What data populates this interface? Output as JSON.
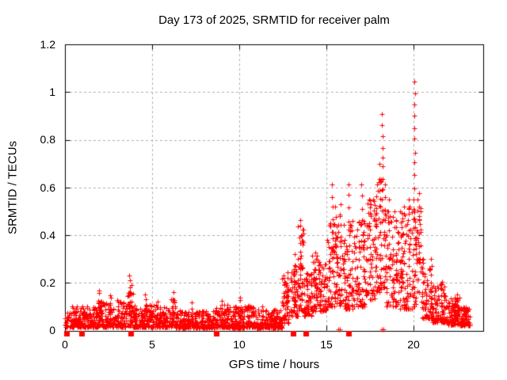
{
  "chart_data": {
    "type": "scatter",
    "title": "Day 173 of 2025, SRMTID for receiver palm",
    "xlabel": "GPS time / hours",
    "ylabel": "SRMTID / TECUs",
    "xlim": [
      0,
      24
    ],
    "ylim": [
      0,
      1.2
    ],
    "xticks": [
      0,
      5,
      10,
      15,
      20
    ],
    "yticks": [
      0,
      0.2,
      0.4,
      0.6,
      0.8,
      1,
      1.2
    ],
    "xtick_labels": [
      "0",
      "5",
      "10",
      "15",
      "20"
    ],
    "ytick_labels": [
      "0",
      "0.2",
      "0.4",
      "0.6",
      "0.8",
      "1",
      "1.2"
    ],
    "grid": true,
    "legend": "none",
    "marker": "plus",
    "marker_size": 7,
    "colors": {
      "points": "#ff0000",
      "axes": "#000000",
      "grid": "#b0b0b0",
      "background": "#ffffff"
    },
    "seed": 20250173,
    "band_segments": [
      [
        0.0,
        1.9,
        210,
        0.015,
        0.1,
        2.2
      ],
      [
        1.9,
        2.1,
        25,
        0.02,
        0.14,
        1.8
      ],
      [
        2.1,
        3.5,
        160,
        0.015,
        0.12,
        2.2
      ],
      [
        3.5,
        3.9,
        45,
        0.02,
        0.16,
        1.8
      ],
      [
        3.9,
        6.1,
        250,
        0.015,
        0.11,
        2.4
      ],
      [
        6.1,
        6.35,
        30,
        0.02,
        0.13,
        1.8
      ],
      [
        6.35,
        8.6,
        250,
        0.012,
        0.085,
        2.2
      ],
      [
        8.6,
        9.4,
        90,
        0.015,
        0.11,
        2.0
      ],
      [
        9.4,
        10.4,
        110,
        0.012,
        0.1,
        2.4
      ],
      [
        10.4,
        10.9,
        55,
        0.015,
        0.11,
        2.0
      ],
      [
        10.9,
        12.45,
        170,
        0.012,
        0.09,
        2.2
      ],
      [
        12.45,
        12.95,
        60,
        0.03,
        0.24,
        1.6
      ],
      [
        12.95,
        13.35,
        48,
        0.06,
        0.3,
        1.6
      ],
      [
        13.35,
        13.7,
        42,
        0.08,
        0.44,
        1.5
      ],
      [
        13.7,
        14.15,
        52,
        0.06,
        0.24,
        1.7
      ],
      [
        14.15,
        14.6,
        52,
        0.08,
        0.32,
        1.6
      ],
      [
        14.6,
        15.05,
        52,
        0.08,
        0.28,
        1.7
      ],
      [
        15.05,
        15.6,
        62,
        0.1,
        0.46,
        1.6
      ],
      [
        15.6,
        16.05,
        52,
        0.1,
        0.5,
        1.7
      ],
      [
        16.05,
        16.55,
        56,
        0.09,
        0.46,
        1.7
      ],
      [
        16.55,
        17.25,
        78,
        0.1,
        0.46,
        1.7
      ],
      [
        17.25,
        17.85,
        68,
        0.13,
        0.55,
        1.6
      ],
      [
        17.85,
        18.45,
        70,
        0.16,
        0.65,
        1.5
      ],
      [
        18.45,
        19.15,
        78,
        0.1,
        0.5,
        1.7
      ],
      [
        19.15,
        19.95,
        90,
        0.09,
        0.52,
        1.7
      ],
      [
        19.95,
        20.45,
        60,
        0.1,
        0.55,
        1.5
      ],
      [
        20.45,
        21.1,
        72,
        0.05,
        0.3,
        1.8
      ],
      [
        21.1,
        21.85,
        85,
        0.035,
        0.2,
        1.9
      ],
      [
        21.85,
        22.7,
        110,
        0.025,
        0.14,
        2.0
      ],
      [
        22.7,
        23.25,
        75,
        0.02,
        0.1,
        2.0
      ]
    ],
    "spike_columns": [
      [
        0.5,
        0.04,
        0.1,
        4
      ],
      [
        1.95,
        0.06,
        0.17,
        7
      ],
      [
        2.6,
        0.05,
        0.15,
        6
      ],
      [
        3.05,
        0.05,
        0.13,
        5
      ],
      [
        3.72,
        0.08,
        0.23,
        8
      ],
      [
        3.8,
        0.06,
        0.19,
        5
      ],
      [
        4.6,
        0.05,
        0.15,
        6
      ],
      [
        5.3,
        0.04,
        0.12,
        4
      ],
      [
        6.2,
        0.05,
        0.16,
        6
      ],
      [
        7.3,
        0.04,
        0.12,
        4
      ],
      [
        9.0,
        0.04,
        0.13,
        6
      ],
      [
        10.05,
        0.05,
        0.14,
        6
      ],
      [
        11.3,
        0.04,
        0.1,
        4
      ],
      [
        12.75,
        0.1,
        0.25,
        6
      ],
      [
        13.2,
        0.12,
        0.32,
        6
      ],
      [
        13.5,
        0.18,
        0.47,
        9
      ],
      [
        13.6,
        0.15,
        0.43,
        6
      ],
      [
        14.35,
        0.15,
        0.33,
        6
      ],
      [
        15.35,
        0.25,
        0.62,
        8
      ],
      [
        15.55,
        0.3,
        0.52,
        6
      ],
      [
        15.8,
        0.3,
        0.53,
        6
      ],
      [
        16.3,
        0.3,
        0.62,
        7
      ],
      [
        17.05,
        0.35,
        0.62,
        6
      ],
      [
        17.5,
        0.3,
        0.55,
        6
      ],
      [
        18.05,
        0.4,
        0.7,
        6
      ],
      [
        18.2,
        0.5,
        0.91,
        10
      ],
      [
        18.35,
        0.35,
        0.62,
        6
      ],
      [
        18.6,
        0.3,
        0.55,
        5
      ],
      [
        19.3,
        0.25,
        0.5,
        6
      ],
      [
        19.75,
        0.3,
        0.55,
        5
      ],
      [
        20.05,
        0.5,
        1.05,
        12
      ],
      [
        20.3,
        0.3,
        0.58,
        6
      ],
      [
        21.0,
        0.1,
        0.27,
        6
      ],
      [
        21.6,
        0.08,
        0.21,
        5
      ],
      [
        22.5,
        0.05,
        0.15,
        5
      ]
    ],
    "zero_squares": [
      0.1,
      0.95,
      3.75,
      8.7,
      13.1,
      13.8,
      16.25
    ],
    "zero_plus_marks": [
      10.0,
      15.68,
      15.78,
      18.18,
      18.28
    ]
  }
}
